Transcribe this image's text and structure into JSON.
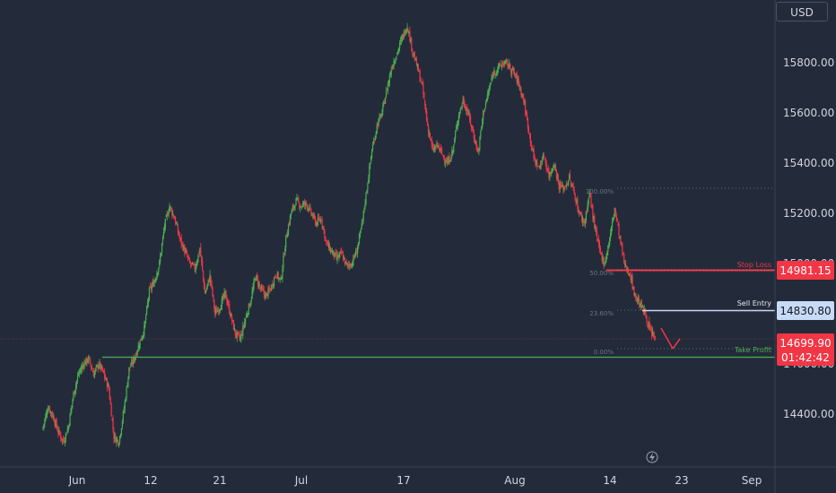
{
  "currency": "USD",
  "colors": {
    "background": "#232b3b",
    "up": "#4caf50",
    "down": "#f23645",
    "stop_loss": "#f23645",
    "sell_entry": "#c7daf6",
    "take_profit": "#4caf50",
    "axis_text": "#d1d4dc"
  },
  "levels": {
    "stop_loss": {
      "label": "Stop Loss",
      "value": "14981.15",
      "price": 14981.15
    },
    "sell_entry": {
      "label": "Sell Entry",
      "value": "14830.80",
      "price": 14830.8
    },
    "current": {
      "value": "14699.90",
      "timer": "01:42:42",
      "price": 14699.9
    },
    "take_profit": {
      "label": "Take Profit",
      "price": 14660
    }
  },
  "fib_labels": [
    {
      "label": "100.00%",
      "price": 15310
    },
    {
      "label": "50.00%",
      "price": 14985
    },
    {
      "label": "23.60%",
      "price": 14830
    },
    {
      "label": "0.00%",
      "price": 14660
    }
  ],
  "chart_data": {
    "type": "candlestick",
    "y_ticks": [
      "15800.00",
      "15600.00",
      "15400.00",
      "15200.00",
      "15000.00",
      "14800.00",
      "14600.00",
      "14400.00"
    ],
    "y_tick_values": [
      15800,
      15600,
      15400,
      15200,
      15000,
      14800,
      14600,
      14400
    ],
    "x_ticks": [
      "Jun",
      "12",
      "21",
      "Jul",
      "17",
      "Aug",
      "14",
      "23",
      "Sep"
    ],
    "ylim": [
      14210,
      16075
    ],
    "series": [
      {
        "values": [
          [
            0,
            14350
          ],
          [
            6,
            14430
          ],
          [
            12,
            14390
          ],
          [
            18,
            14330
          ],
          [
            24,
            14290
          ],
          [
            30,
            14350
          ],
          [
            36,
            14480
          ],
          [
            42,
            14560
          ],
          [
            48,
            14600
          ],
          [
            54,
            14620
          ],
          [
            60,
            14560
          ],
          [
            66,
            14600
          ],
          [
            72,
            14560
          ],
          [
            78,
            14500
          ],
          [
            84,
            14310
          ],
          [
            90,
            14290
          ],
          [
            96,
            14420
          ],
          [
            102,
            14580
          ],
          [
            108,
            14620
          ],
          [
            114,
            14680
          ],
          [
            120,
            14740
          ],
          [
            126,
            14890
          ],
          [
            132,
            14930
          ],
          [
            138,
            15000
          ],
          [
            144,
            15150
          ],
          [
            150,
            15230
          ],
          [
            156,
            15180
          ],
          [
            162,
            15100
          ],
          [
            168,
            15050
          ],
          [
            174,
            15000
          ],
          [
            180,
            14980
          ],
          [
            186,
            15060
          ],
          [
            192,
            14880
          ],
          [
            198,
            14950
          ],
          [
            204,
            14800
          ],
          [
            210,
            14830
          ],
          [
            216,
            14880
          ],
          [
            222,
            14800
          ],
          [
            228,
            14720
          ],
          [
            234,
            14700
          ],
          [
            240,
            14780
          ],
          [
            246,
            14850
          ],
          [
            252,
            14950
          ],
          [
            258,
            14900
          ],
          [
            264,
            14870
          ],
          [
            270,
            14900
          ],
          [
            276,
            14960
          ],
          [
            282,
            14930
          ],
          [
            288,
            15100
          ],
          [
            294,
            15200
          ],
          [
            300,
            15250
          ],
          [
            306,
            15230
          ],
          [
            312,
            15240
          ],
          [
            318,
            15200
          ],
          [
            324,
            15160
          ],
          [
            330,
            15180
          ],
          [
            336,
            15080
          ],
          [
            342,
            15050
          ],
          [
            348,
            15020
          ],
          [
            354,
            15040
          ],
          [
            360,
            14990
          ],
          [
            366,
            15000
          ],
          [
            372,
            15050
          ],
          [
            378,
            15150
          ],
          [
            384,
            15300
          ],
          [
            390,
            15450
          ],
          [
            396,
            15550
          ],
          [
            402,
            15600
          ],
          [
            408,
            15700
          ],
          [
            414,
            15790
          ],
          [
            420,
            15840
          ],
          [
            426,
            15900
          ],
          [
            432,
            15950
          ],
          [
            438,
            15850
          ],
          [
            444,
            15780
          ],
          [
            450,
            15700
          ],
          [
            456,
            15550
          ],
          [
            462,
            15450
          ],
          [
            468,
            15470
          ],
          [
            474,
            15430
          ],
          [
            480,
            15400
          ],
          [
            486,
            15450
          ],
          [
            492,
            15580
          ],
          [
            498,
            15650
          ],
          [
            504,
            15600
          ],
          [
            510,
            15520
          ],
          [
            516,
            15440
          ],
          [
            522,
            15600
          ],
          [
            528,
            15680
          ],
          [
            534,
            15760
          ],
          [
            540,
            15780
          ],
          [
            546,
            15800
          ],
          [
            552,
            15790
          ],
          [
            558,
            15760
          ],
          [
            564,
            15720
          ],
          [
            570,
            15650
          ],
          [
            576,
            15530
          ],
          [
            582,
            15420
          ],
          [
            588,
            15380
          ],
          [
            594,
            15430
          ],
          [
            600,
            15350
          ],
          [
            606,
            15400
          ],
          [
            612,
            15310
          ],
          [
            618,
            15300
          ],
          [
            624,
            15340
          ],
          [
            630,
            15280
          ],
          [
            636,
            15200
          ],
          [
            642,
            15160
          ],
          [
            648,
            15280
          ],
          [
            654,
            15150
          ],
          [
            660,
            15050
          ],
          [
            666,
            15000
          ],
          [
            672,
            15100
          ],
          [
            678,
            15220
          ],
          [
            684,
            15100
          ],
          [
            690,
            14990
          ],
          [
            696,
            14960
          ],
          [
            702,
            14870
          ],
          [
            708,
            14840
          ],
          [
            714,
            14800
          ],
          [
            720,
            14730
          ],
          [
            726,
            14699.9
          ]
        ]
      }
    ]
  }
}
